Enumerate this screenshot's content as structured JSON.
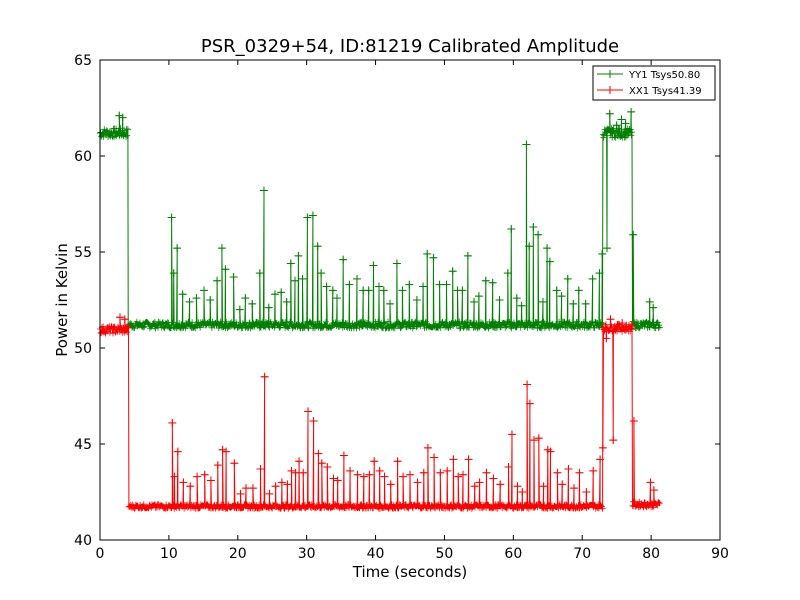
{
  "chart_data": {
    "type": "line",
    "title": "PSR_0329+54, ID:81219 Calibrated Amplitude",
    "xlabel": "Time (seconds)",
    "ylabel": "Power in Kelvin",
    "xlim": [
      0,
      90
    ],
    "ylim": [
      40,
      65
    ],
    "xticks": [
      0,
      10,
      20,
      30,
      40,
      50,
      60,
      70,
      80,
      90
    ],
    "yticks": [
      40,
      45,
      50,
      55,
      60,
      65
    ],
    "grid": false,
    "legend_position": "top-right",
    "series": [
      {
        "name": "YY1 Tsys50.80",
        "color": "#008000",
        "segments": [
          {
            "x_start": 0,
            "x_end": 4.1,
            "baseline": 61.2,
            "noise": 0.25
          },
          {
            "x_start": 4.1,
            "x_end": 73.0,
            "baseline": 51.2,
            "noise": 0.18
          },
          {
            "x_start": 73.0,
            "x_end": 77.3,
            "baseline": 61.2,
            "noise": 0.25
          },
          {
            "x_start": 77.3,
            "x_end": 81.3,
            "baseline": 51.2,
            "noise": 0.18
          }
        ],
        "spikes": [
          [
            2.8,
            62.1
          ],
          [
            3.3,
            62.0
          ],
          [
            10.4,
            56.8
          ],
          [
            10.7,
            53.9
          ],
          [
            11.2,
            55.2
          ],
          [
            12.0,
            52.8
          ],
          [
            13.0,
            52.4
          ],
          [
            14.0,
            52.6
          ],
          [
            15.1,
            53.0
          ],
          [
            16.0,
            52.5
          ],
          [
            17.0,
            53.5
          ],
          [
            17.7,
            55.2
          ],
          [
            18.2,
            54.1
          ],
          [
            19.4,
            53.7
          ],
          [
            20.3,
            52.0
          ],
          [
            21.1,
            52.6
          ],
          [
            22.1,
            52.3
          ],
          [
            23.2,
            53.9
          ],
          [
            23.8,
            58.2
          ],
          [
            24.5,
            52.1
          ],
          [
            25.4,
            52.8
          ],
          [
            26.3,
            52.9
          ],
          [
            27.1,
            52.4
          ],
          [
            27.7,
            54.4
          ],
          [
            28.3,
            53.5
          ],
          [
            28.8,
            54.8
          ],
          [
            29.4,
            53.6
          ],
          [
            30.1,
            56.8
          ],
          [
            30.9,
            56.9
          ],
          [
            31.6,
            55.3
          ],
          [
            32.1,
            53.9
          ],
          [
            32.9,
            53.2
          ],
          [
            33.8,
            53.0
          ],
          [
            34.4,
            52.6
          ],
          [
            35.3,
            54.6
          ],
          [
            36.2,
            53.3
          ],
          [
            37.3,
            53.6
          ],
          [
            38.2,
            53.0
          ],
          [
            39.0,
            53.0
          ],
          [
            39.7,
            54.3
          ],
          [
            40.5,
            53.2
          ],
          [
            41.2,
            53.0
          ],
          [
            42.1,
            52.3
          ],
          [
            43.1,
            54.4
          ],
          [
            43.9,
            53.0
          ],
          [
            44.9,
            53.3
          ],
          [
            46.0,
            52.5
          ],
          [
            46.9,
            53.2
          ],
          [
            47.5,
            54.9
          ],
          [
            48.4,
            54.7
          ],
          [
            49.3,
            53.3
          ],
          [
            50.3,
            53.3
          ],
          [
            51.2,
            54.0
          ],
          [
            51.9,
            53.0
          ],
          [
            52.6,
            53.0
          ],
          [
            53.4,
            54.8
          ],
          [
            54.3,
            52.4
          ],
          [
            55.0,
            52.7
          ],
          [
            56.0,
            53.5
          ],
          [
            57.0,
            53.4
          ],
          [
            58.0,
            52.5
          ],
          [
            59.2,
            53.9
          ],
          [
            59.7,
            56.2
          ],
          [
            60.5,
            52.6
          ],
          [
            61.2,
            52.2
          ],
          [
            61.9,
            60.6
          ],
          [
            62.3,
            55.3
          ],
          [
            62.9,
            56.3
          ],
          [
            63.6,
            55.9
          ],
          [
            64.3,
            52.4
          ],
          [
            64.9,
            55.2
          ],
          [
            65.3,
            54.5
          ],
          [
            66.3,
            53.0
          ],
          [
            67.0,
            52.7
          ],
          [
            67.9,
            53.6
          ],
          [
            68.7,
            52.3
          ],
          [
            69.5,
            53.0
          ],
          [
            70.5,
            52.3
          ],
          [
            71.5,
            53.6
          ],
          [
            72.5,
            53.9
          ],
          [
            72.9,
            54.9
          ],
          [
            73.6,
            55.2
          ],
          [
            74.0,
            62.2
          ],
          [
            74.4,
            61.3
          ],
          [
            75.0,
            61.6
          ],
          [
            75.7,
            61.9
          ],
          [
            76.3,
            61.7
          ],
          [
            77.1,
            62.3
          ],
          [
            77.4,
            55.9
          ],
          [
            79.8,
            52.4
          ],
          [
            80.3,
            52.1
          ]
        ]
      },
      {
        "name": "XX1 Tsys41.39",
        "color": "#ff0000",
        "segments": [
          {
            "x_start": 0,
            "x_end": 4.2,
            "baseline": 50.95,
            "noise": 0.2
          },
          {
            "x_start": 4.2,
            "x_end": 73.0,
            "baseline": 41.75,
            "noise": 0.12
          },
          {
            "x_start": 73.0,
            "x_end": 77.3,
            "baseline": 51.05,
            "noise": 0.2
          },
          {
            "x_start": 77.3,
            "x_end": 81.3,
            "baseline": 41.85,
            "noise": 0.15
          }
        ],
        "spikes": [
          [
            2.9,
            51.6
          ],
          [
            3.6,
            51.5
          ],
          [
            10.5,
            46.1
          ],
          [
            10.8,
            43.3
          ],
          [
            11.3,
            44.6
          ],
          [
            12.1,
            43.0
          ],
          [
            13.1,
            42.8
          ],
          [
            14.1,
            43.3
          ],
          [
            15.2,
            43.4
          ],
          [
            16.1,
            43.1
          ],
          [
            17.1,
            43.9
          ],
          [
            17.8,
            44.7
          ],
          [
            18.3,
            44.6
          ],
          [
            19.5,
            44.0
          ],
          [
            20.4,
            42.4
          ],
          [
            21.2,
            42.7
          ],
          [
            22.2,
            42.7
          ],
          [
            23.3,
            43.7
          ],
          [
            23.9,
            48.5
          ],
          [
            24.6,
            42.4
          ],
          [
            25.5,
            42.8
          ],
          [
            26.4,
            43.0
          ],
          [
            27.2,
            42.9
          ],
          [
            27.8,
            43.6
          ],
          [
            28.4,
            43.5
          ],
          [
            28.9,
            44.1
          ],
          [
            29.5,
            43.5
          ],
          [
            30.2,
            46.7
          ],
          [
            31.0,
            46.2
          ],
          [
            31.7,
            44.5
          ],
          [
            32.2,
            44.0
          ],
          [
            33.0,
            43.8
          ],
          [
            33.9,
            43.2
          ],
          [
            34.5,
            43.1
          ],
          [
            35.4,
            44.4
          ],
          [
            36.3,
            43.6
          ],
          [
            37.4,
            43.4
          ],
          [
            38.3,
            43.3
          ],
          [
            39.1,
            43.4
          ],
          [
            39.8,
            44.1
          ],
          [
            40.6,
            43.6
          ],
          [
            41.3,
            43.3
          ],
          [
            42.2,
            42.9
          ],
          [
            43.2,
            44.1
          ],
          [
            44.0,
            43.3
          ],
          [
            45.0,
            43.4
          ],
          [
            46.1,
            43.0
          ],
          [
            47.0,
            43.5
          ],
          [
            47.6,
            44.8
          ],
          [
            48.5,
            44.3
          ],
          [
            49.4,
            43.5
          ],
          [
            50.4,
            43.6
          ],
          [
            51.3,
            44.2
          ],
          [
            52.0,
            43.3
          ],
          [
            52.7,
            43.4
          ],
          [
            53.5,
            44.2
          ],
          [
            54.4,
            42.8
          ],
          [
            55.1,
            43.0
          ],
          [
            56.1,
            43.5
          ],
          [
            57.1,
            43.2
          ],
          [
            58.1,
            42.9
          ],
          [
            59.3,
            43.8
          ],
          [
            59.8,
            45.5
          ],
          [
            60.6,
            42.8
          ],
          [
            61.3,
            42.5
          ],
          [
            62.0,
            48.1
          ],
          [
            62.4,
            47.1
          ],
          [
            63.0,
            45.2
          ],
          [
            63.7,
            45.3
          ],
          [
            64.4,
            42.8
          ],
          [
            65.0,
            44.7
          ],
          [
            65.4,
            44.6
          ],
          [
            66.4,
            43.5
          ],
          [
            67.1,
            42.9
          ],
          [
            68.0,
            43.7
          ],
          [
            68.8,
            42.7
          ],
          [
            69.6,
            43.5
          ],
          [
            70.6,
            42.5
          ],
          [
            71.6,
            43.6
          ],
          [
            72.6,
            44.2
          ],
          [
            73.0,
            44.8
          ],
          [
            73.5,
            50.5
          ],
          [
            74.1,
            51.5
          ],
          [
            74.5,
            45.2
          ],
          [
            75.1,
            51.2
          ],
          [
            75.8,
            51.3
          ],
          [
            76.4,
            51.0
          ],
          [
            77.2,
            51.2
          ],
          [
            77.5,
            46.2
          ],
          [
            79.9,
            43.0
          ],
          [
            80.4,
            42.6
          ]
        ]
      }
    ]
  }
}
